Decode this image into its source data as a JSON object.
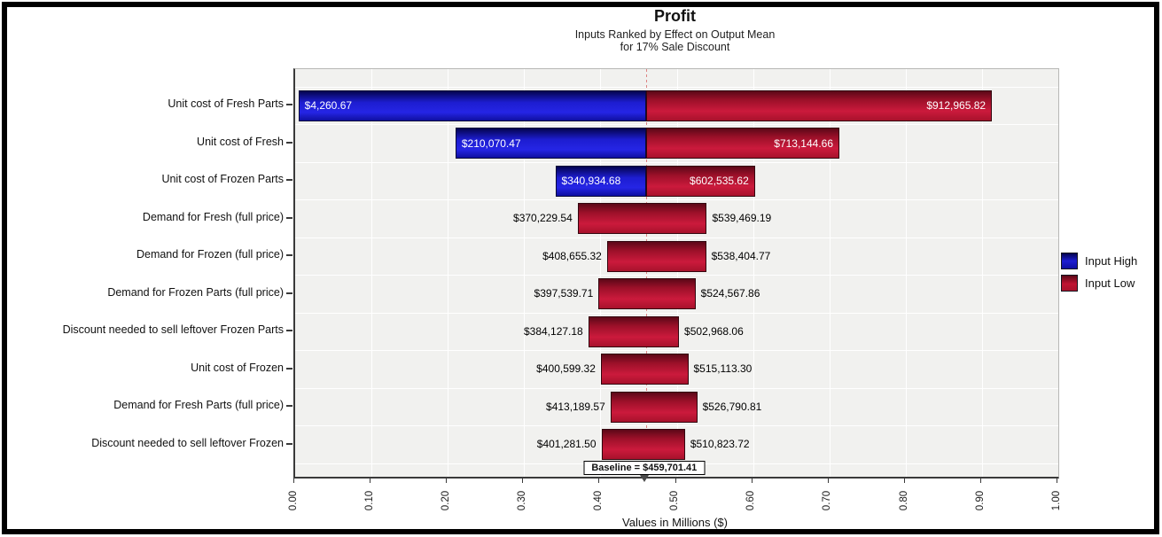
{
  "chart_data": {
    "type": "bar",
    "variant": "tornado-sensitivity",
    "title": "Profit",
    "subtitle1": "Inputs Ranked by Effect on Output Mean",
    "subtitle2": "for 17% Sale Discount",
    "xlabel": "Values in Millions ($)",
    "xlim": [
      0,
      1
    ],
    "xticks": [
      "0.00",
      "0.10",
      "0.20",
      "0.30",
      "0.40",
      "0.50",
      "0.60",
      "0.70",
      "0.80",
      "0.90",
      "1.00"
    ],
    "grid": true,
    "legend_position": "right",
    "legend": [
      {
        "label": "Input High",
        "color": "#1d1dd2"
      },
      {
        "label": "Input Low",
        "color": "#c01432"
      }
    ],
    "baseline": {
      "label": "Baseline = $459,701.41",
      "value_millions": 0.45970141
    },
    "bars": [
      {
        "category": "Unit cost of Fresh Parts",
        "low_label": "$4,260.67",
        "high_label": "$912,965.82",
        "low_m": 0.00426067,
        "high_m": 0.91296582,
        "split": true
      },
      {
        "category": "Unit cost of Fresh",
        "low_label": "$210,070.47",
        "high_label": "$713,144.66",
        "low_m": 0.21007047,
        "high_m": 0.71314466,
        "split": true
      },
      {
        "category": "Unit cost of Frozen Parts",
        "low_label": "$340,934.68",
        "high_label": "$602,535.62",
        "low_m": 0.34093468,
        "high_m": 0.60253562,
        "split": true
      },
      {
        "category": "Demand for Fresh (full price)",
        "low_label": "$370,229.54",
        "high_label": "$539,469.19",
        "low_m": 0.37022954,
        "high_m": 0.53946919,
        "split": false
      },
      {
        "category": "Demand for Frozen (full price)",
        "low_label": "$408,655.32",
        "high_label": "$538,404.77",
        "low_m": 0.40865532,
        "high_m": 0.53840477,
        "split": false
      },
      {
        "category": "Demand for Frozen Parts (full price)",
        "low_label": "$397,539.71",
        "high_label": "$524,567.86",
        "low_m": 0.39753971,
        "high_m": 0.52456786,
        "split": false
      },
      {
        "category": "Discount needed to sell leftover Frozen Parts",
        "low_label": "$384,127.18",
        "high_label": "$502,968.06",
        "low_m": 0.38412718,
        "high_m": 0.50296806,
        "split": false
      },
      {
        "category": "Unit cost of Frozen",
        "low_label": "$400,599.32",
        "high_label": "$515,113.30",
        "low_m": 0.40059932,
        "high_m": 0.5151133,
        "split": false
      },
      {
        "category": "Demand for Fresh Parts (full price)",
        "low_label": "$413,189.57",
        "high_label": "$526,790.81",
        "low_m": 0.41318957,
        "high_m": 0.52679081,
        "split": false
      },
      {
        "category": "Discount needed to sell leftover Frozen",
        "low_label": "$401,281.50",
        "high_label": "$510,823.72",
        "low_m": 0.4012815,
        "high_m": 0.51082372,
        "split": false
      }
    ],
    "colors": {
      "plot_background": "#f1f1ef",
      "gridline": "#ffffff",
      "baseline_line": "#dc8383",
      "input_high": "#1d1dd2",
      "input_low": "#c01432"
    }
  }
}
